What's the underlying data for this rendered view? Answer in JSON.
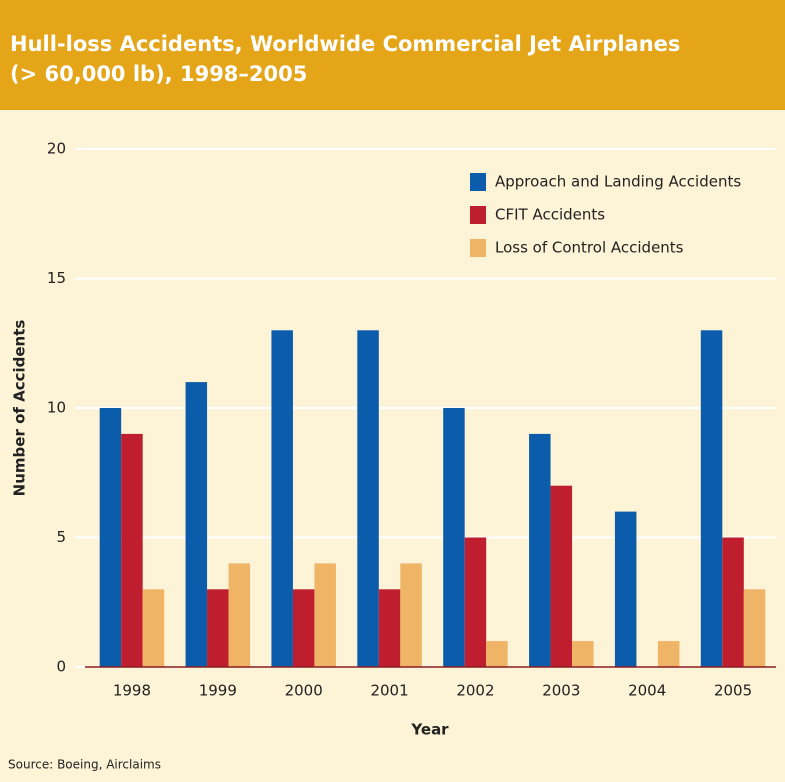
{
  "chart_data": {
    "type": "bar",
    "title": [
      "Hull-loss Accidents, Worldwide Commercial Jet Airplanes",
      "(> 60,000 lb), 1998–2005"
    ],
    "categories": [
      "1998",
      "1999",
      "2000",
      "2001",
      "2002",
      "2003",
      "2004",
      "2005"
    ],
    "series": [
      {
        "name": "Approach and Landing Accidents",
        "color": "#0b5dab",
        "values": [
          10,
          11,
          13,
          13,
          10,
          9,
          6,
          13
        ]
      },
      {
        "name": "CFIT Accidents",
        "color": "#be1e2d",
        "values": [
          9,
          3,
          3,
          3,
          5,
          7,
          0,
          5
        ]
      },
      {
        "name": "Loss of Control Accidents",
        "color": "#f0b466",
        "values": [
          3,
          4,
          4,
          4,
          1,
          1,
          1,
          3
        ]
      }
    ],
    "ylim": [
      0,
      20
    ],
    "yticks": [
      0,
      5,
      10,
      15,
      20
    ],
    "grid": true,
    "x_label": "Year",
    "y_label": "Number of Accidents",
    "legend": "top-right",
    "source": "Source: Boeing, Airclaims"
  }
}
